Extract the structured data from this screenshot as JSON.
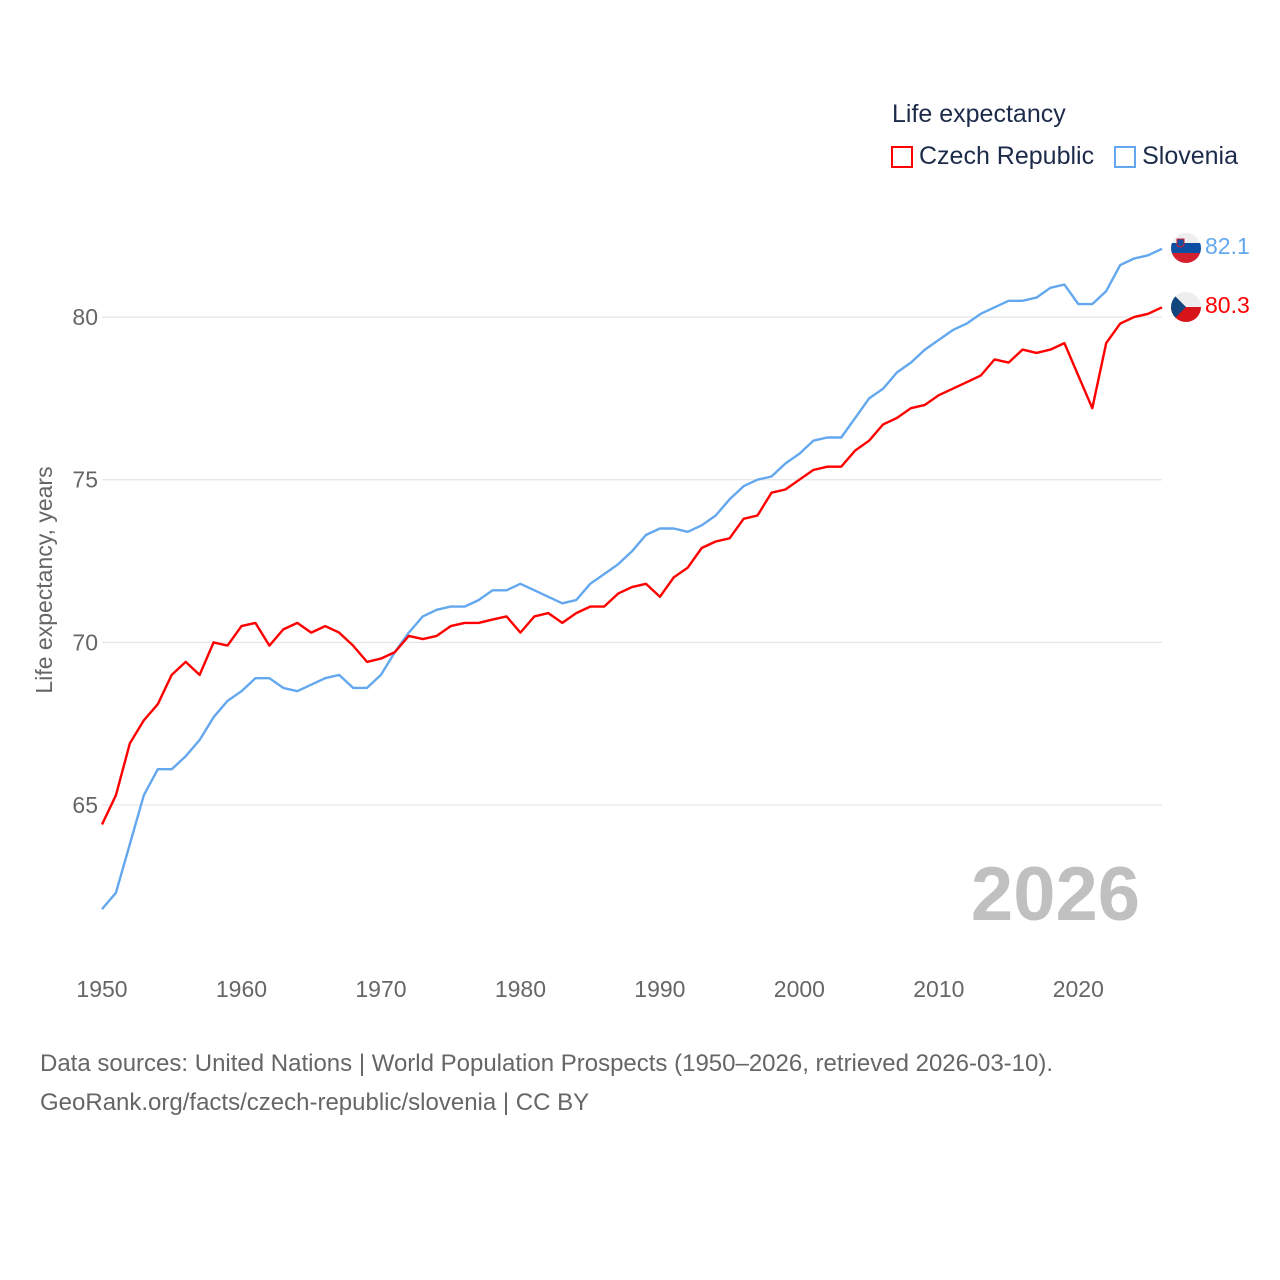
{
  "colors": {
    "czech": "#ff0000",
    "slovenia": "#63a8ee",
    "watermark": "#c0c0c0"
  },
  "legend": {
    "title": "Life expectancy",
    "items": [
      "Czech Republic",
      "Slovenia"
    ]
  },
  "year_watermark": "2026",
  "end_labels": {
    "czech": "80.3",
    "slovenia": "82.1"
  },
  "flags": {
    "czech": "czech-flag-icon",
    "slovenia": "slovenia-flag-icon"
  },
  "source": {
    "line1": "Data sources: United Nations | World Population Prospects (1950–2026, retrieved 2026-03-10).",
    "line2": "GeoRank.org/facts/czech-republic/slovenia | CC BY"
  },
  "chart_data": {
    "type": "line",
    "title": "Life expectancy",
    "xlabel": "",
    "ylabel": "Life expectancy, years",
    "xlim": [
      1950,
      2026
    ],
    "ylim": [
      60.85,
      83.6
    ],
    "x_ticks": [
      "1950",
      "1960",
      "1970",
      "1980",
      "1990",
      "2000",
      "2010",
      "2020"
    ],
    "y_ticks": [
      "65",
      "70",
      "75",
      "80"
    ],
    "grid": true,
    "legend_position": "top-right",
    "x_start": 1950,
    "series": [
      {
        "name": "Czech Republic",
        "values": [
          64.4,
          65.3,
          66.9,
          67.6,
          68.1,
          69.0,
          69.4,
          69.0,
          70.0,
          69.9,
          70.5,
          70.6,
          69.9,
          70.4,
          70.6,
          70.3,
          70.5,
          70.3,
          69.9,
          69.4,
          69.5,
          69.7,
          70.2,
          70.1,
          70.2,
          70.5,
          70.6,
          70.6,
          70.7,
          70.8,
          70.3,
          70.8,
          70.9,
          70.6,
          70.9,
          71.1,
          71.1,
          71.5,
          71.7,
          71.8,
          71.4,
          72.0,
          72.3,
          72.9,
          73.1,
          73.2,
          73.8,
          73.9,
          74.6,
          74.7,
          75.0,
          75.3,
          75.4,
          75.4,
          75.9,
          76.2,
          76.7,
          76.9,
          77.2,
          77.3,
          77.6,
          77.8,
          78.0,
          78.2,
          78.7,
          78.6,
          79.0,
          78.9,
          79.0,
          79.2,
          78.2,
          77.2,
          79.2,
          79.8,
          80.0,
          80.1,
          80.3
        ]
      },
      {
        "name": "Slovenia",
        "values": [
          61.8,
          62.3,
          63.8,
          65.3,
          66.1,
          66.1,
          66.5,
          67.0,
          67.7,
          68.2,
          68.5,
          68.9,
          68.9,
          68.6,
          68.5,
          68.7,
          68.9,
          69.0,
          68.6,
          68.6,
          69.0,
          69.7,
          70.3,
          70.8,
          71.0,
          71.1,
          71.1,
          71.3,
          71.6,
          71.6,
          71.8,
          71.6,
          71.4,
          71.2,
          71.3,
          71.8,
          72.1,
          72.4,
          72.8,
          73.3,
          73.5,
          73.5,
          73.4,
          73.6,
          73.9,
          74.4,
          74.8,
          75.0,
          75.1,
          75.5,
          75.8,
          76.2,
          76.3,
          76.3,
          76.9,
          77.5,
          77.8,
          78.3,
          78.6,
          79.0,
          79.3,
          79.6,
          79.8,
          80.1,
          80.3,
          80.5,
          80.5,
          80.6,
          80.9,
          81.0,
          80.4,
          80.4,
          80.8,
          81.6,
          81.8,
          81.9,
          82.1
        ]
      }
    ]
  }
}
